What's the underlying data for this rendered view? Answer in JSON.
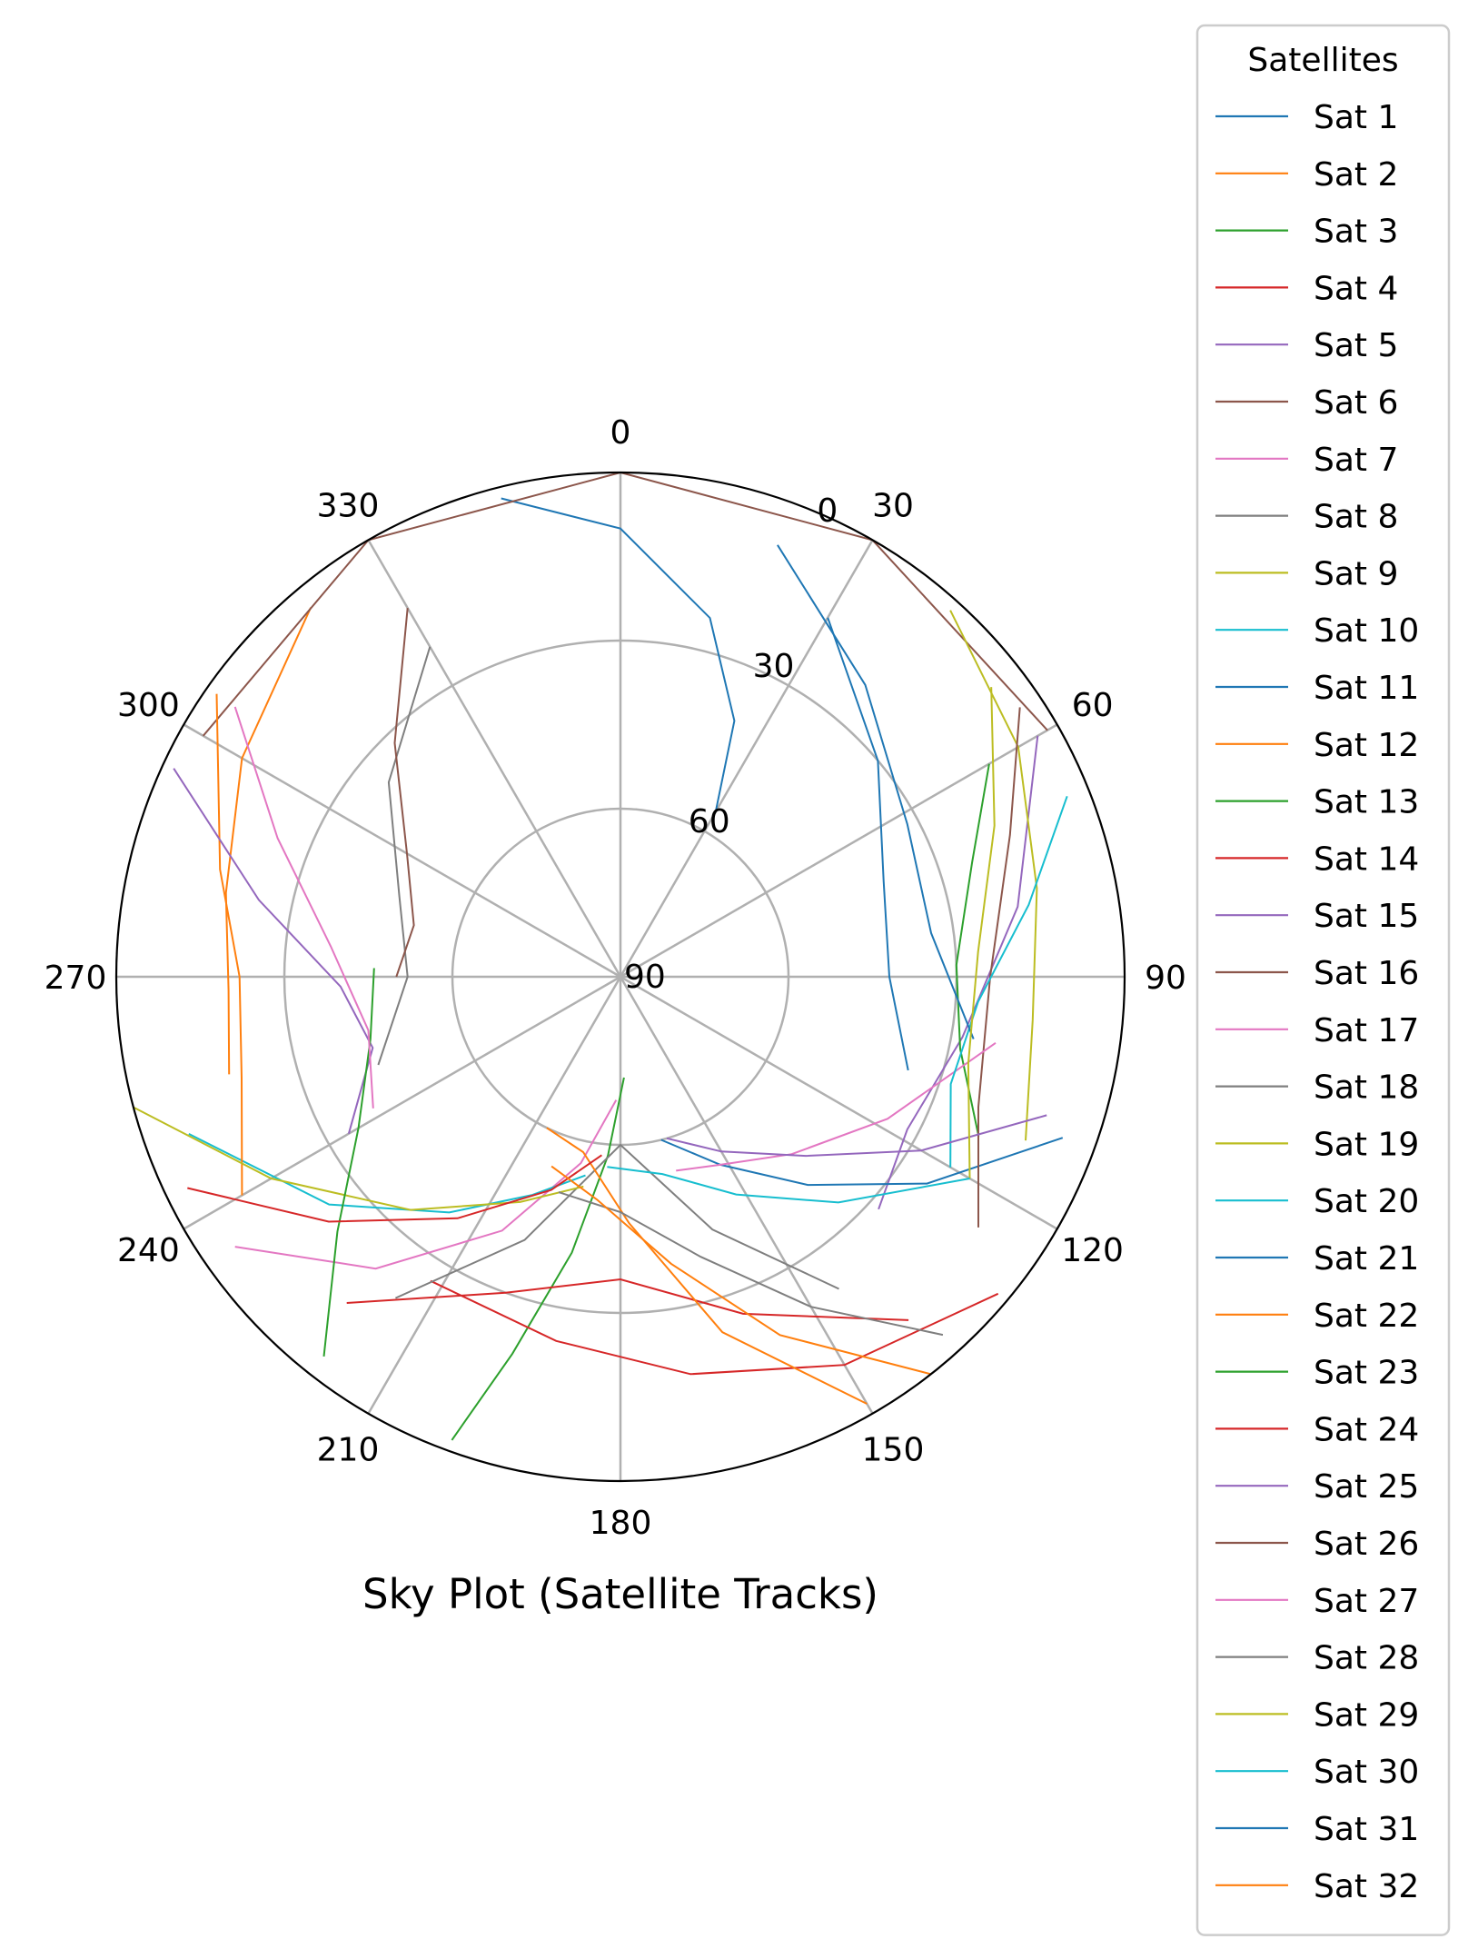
{
  "chart_data": {
    "type": "polar-line",
    "title": "Sky Plot (Satellite Tracks)",
    "theta_axis": {
      "zero_location": "top",
      "direction": "clockwise",
      "ticks": [
        0,
        30,
        60,
        90,
        120,
        150,
        180,
        210,
        240,
        270,
        300,
        330
      ],
      "tick_labels": [
        "0",
        "30",
        "60",
        "90",
        "120",
        "150",
        "180",
        "210",
        "240",
        "270",
        "300",
        "330"
      ]
    },
    "r_axis": {
      "quantity": "elevation",
      "ticks": [
        0,
        30,
        60,
        90
      ],
      "tick_labels": [
        "0",
        "30",
        "60",
        "90"
      ],
      "label_angle": 22.5,
      "grid": true
    },
    "legend": {
      "title": "Satellites",
      "placement": "outside-right"
    },
    "colors": [
      "#1f77b4",
      "#ff7f0e",
      "#2ca02c",
      "#d62728",
      "#9467bd",
      "#8c564b",
      "#e377c2",
      "#7f7f7f",
      "#bcbd22",
      "#17becf"
    ],
    "series": [
      {
        "name": "Sat 1",
        "x": [
          346,
          0,
          14,
          24,
          30
        ],
        "y": [
          2,
          10,
          24,
          40,
          56
        ]
      },
      {
        "name": "Sat 2",
        "x": [
          320,
          300,
          282,
          268,
          256
        ],
        "y": [
          4,
          12,
          18,
          20,
          18
        ]
      },
      {
        "name": "Sat 3",
        "x": [
          200,
          196,
          190,
          184,
          178
        ],
        "y": [
          2,
          20,
          40,
          58,
          72
        ]
      },
      {
        "name": "Sat 4",
        "x": [
          130,
          150,
          170,
          190,
          212
        ],
        "y": [
          2,
          10,
          18,
          24,
          26
        ]
      },
      {
        "name": "Sat 5",
        "x": [
          60,
          80,
          100,
          118,
          132
        ],
        "y": [
          4,
          18,
          28,
          32,
          28
        ]
      },
      {
        "name": "Sat 6",
        "x": [
          300,
          330,
          0,
          30,
          60
        ],
        "y": [
          4,
          0,
          0,
          0,
          2
        ]
      },
      {
        "name": "Sat 7",
        "x": [
          235,
          220,
          205,
          192,
          182
        ],
        "y": [
          6,
          22,
          40,
          56,
          68
        ]
      },
      {
        "name": "Sat 8",
        "x": [
          215,
          200,
          180,
          160,
          145
        ],
        "y": [
          20,
          40,
          60,
          42,
          22
        ]
      },
      {
        "name": "Sat 9",
        "x": [
          42,
          60,
          78,
          96,
          112
        ],
        "y": [
          2,
          8,
          14,
          16,
          12
        ]
      },
      {
        "name": "Sat 10",
        "x": [
          250,
          232,
          216,
          202,
          190
        ],
        "y": [
          8,
          24,
          38,
          48,
          54
        ]
      },
      {
        "name": "Sat 11",
        "x": [
          110,
          124,
          138,
          152,
          166
        ],
        "y": [
          6,
          24,
          40,
          52,
          60
        ]
      },
      {
        "name": "Sat 12",
        "x": [
          305,
          285,
          270,
          255,
          240
        ],
        "y": [
          2,
          16,
          22,
          20,
          12
        ]
      },
      {
        "name": "Sat 13",
        "x": [
          60,
          72,
          88,
          102,
          114
        ],
        "y": [
          14,
          24,
          30,
          28,
          20
        ]
      },
      {
        "name": "Sat 14",
        "x": [
          140,
          160,
          180,
          200,
          220
        ],
        "y": [
          10,
          26,
          36,
          30,
          14
        ]
      },
      {
        "name": "Sat 15",
        "x": [
          295,
          282,
          268,
          254,
          240
        ],
        "y": [
          2,
          24,
          40,
          44,
          34
        ]
      },
      {
        "name": "Sat 16",
        "x": [
          56,
          70,
          90,
          110,
          125
        ],
        "y": [
          4,
          16,
          24,
          22,
          12
        ]
      },
      {
        "name": "Sat 17",
        "x": [
          100,
          118,
          136,
          152,
          164
        ],
        "y": [
          22,
          36,
          46,
          52,
          54
        ]
      },
      {
        "name": "Sat 18",
        "x": [
          330,
          310,
          290,
          270,
          250
        ],
        "y": [
          22,
          36,
          48,
          52,
          44
        ]
      },
      {
        "name": "Sat 19",
        "x": [
          255,
          240,
          222,
          204,
          190
        ],
        "y": [
          0,
          18,
          34,
          46,
          52
        ]
      },
      {
        "name": "Sat 20",
        "x": [
          68,
          80,
          94,
          108,
          120
        ],
        "y": [
          4,
          16,
          26,
          28,
          22
        ]
      },
      {
        "name": "Sat 21",
        "x": [
          20,
          40,
          62,
          82,
          100
        ],
        "y": [
          8,
          22,
          32,
          34,
          26
        ]
      },
      {
        "name": "Sat 22",
        "x": [
          150,
          164,
          178,
          192,
          206
        ],
        "y": [
          2,
          24,
          46,
          58,
          60
        ]
      },
      {
        "name": "Sat 23",
        "x": [
          218,
          228,
          240,
          256,
          272
        ],
        "y": [
          4,
          22,
          36,
          44,
          46
        ]
      },
      {
        "name": "Sat 24",
        "x": [
          244,
          230,
          214,
          198,
          186
        ],
        "y": [
          4,
          22,
          38,
          50,
          58
        ]
      },
      {
        "name": "Sat 25",
        "x": [
          108,
          120,
          134,
          150,
          164
        ],
        "y": [
          10,
          28,
          44,
          54,
          60
        ]
      },
      {
        "name": "Sat 26",
        "x": [
          330,
          316,
          300,
          284,
          270
        ],
        "y": [
          14,
          32,
          46,
          52,
          50
        ]
      },
      {
        "name": "Sat 27",
        "x": [
          305,
          292,
          276,
          258,
          242
        ],
        "y": [
          6,
          24,
          38,
          44,
          40
        ]
      },
      {
        "name": "Sat 28",
        "x": [
          138,
          150,
          164,
          180,
          196
        ],
        "y": [
          4,
          22,
          38,
          48,
          50
        ]
      },
      {
        "name": "Sat 29",
        "x": [
          52,
          68,
          86,
          104,
          120
        ],
        "y": [
          6,
          18,
          26,
          26,
          18
        ]
      },
      {
        "name": "Sat 30",
        "x": [
          120,
          136,
          152,
          168,
          184
        ],
        "y": [
          18,
          34,
          46,
          54,
          56
        ]
      },
      {
        "name": "Sat 31",
        "x": [
          30,
          50,
          70,
          90,
          108
        ],
        "y": [
          16,
          30,
          40,
          42,
          36
        ]
      },
      {
        "name": "Sat 32",
        "x": [
          142,
          156,
          170,
          186,
          200
        ],
        "y": [
          0,
          20,
          38,
          50,
          54
        ]
      }
    ]
  }
}
